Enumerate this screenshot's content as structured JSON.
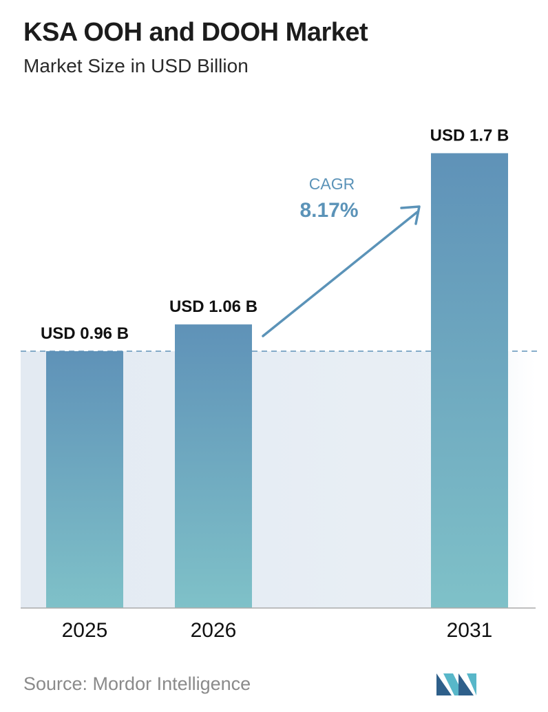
{
  "title": "KSA OOH and DOOH Market",
  "subtitle": "Market Size in USD Billion",
  "source": "Source: Mordor Intelligence",
  "colors": {
    "bar_top": "#5f92b8",
    "bar_bottom": "#7fc1c8",
    "band": "#e3eaf2",
    "cagr": "#5b93b8",
    "dashed_line": "#5f92b8",
    "axis": "#aaaaaa"
  },
  "cagr": {
    "label": "CAGR",
    "value": "8.17%"
  },
  "chart_data": {
    "type": "bar",
    "title": "KSA OOH and DOOH Market",
    "subtitle": "Market Size in USD Billion",
    "categories": [
      "2025",
      "2026",
      "2031"
    ],
    "values": [
      0.96,
      1.06,
      1.7
    ],
    "data_labels": [
      "USD 0.96 B",
      "USD 1.06 B",
      "USD 1.7 B"
    ],
    "xlabel": "",
    "ylabel": "",
    "reference_line": 0.96,
    "grid": false,
    "legend": "none"
  }
}
